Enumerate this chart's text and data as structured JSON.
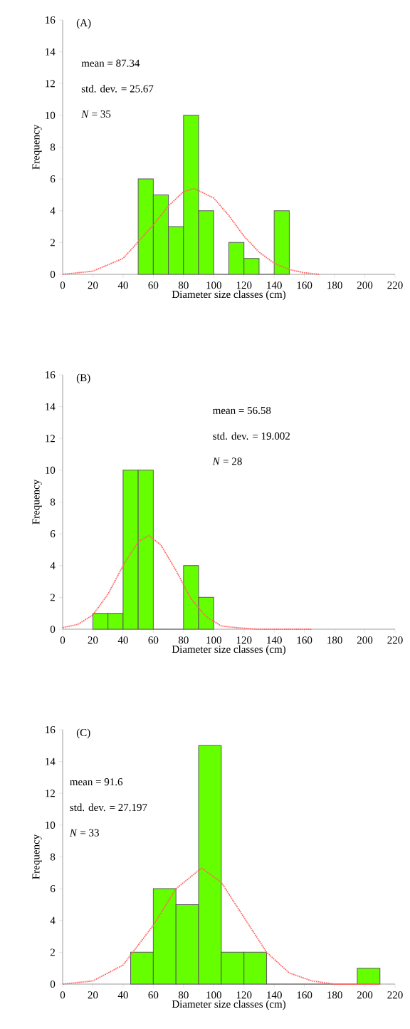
{
  "chart_data": [
    {
      "type": "histogram",
      "bins": [
        50,
        60,
        70,
        80,
        90,
        100,
        110,
        120,
        130,
        140,
        150
      ],
      "values": [
        6,
        5,
        3,
        10,
        4,
        0,
        2,
        1,
        0,
        4
      ],
      "color": "#66ff00",
      "series": [
        {
          "type": "line",
          "color": "#ff6666",
          "line_style": "dotted",
          "x": [
            0,
            20,
            40,
            60,
            70,
            80,
            87,
            100,
            110,
            120,
            130,
            140,
            150,
            160,
            170
          ],
          "values": [
            0,
            0.2,
            1,
            3.1,
            4.3,
            5.2,
            5.4,
            4.8,
            3.7,
            2.4,
            1.4,
            0.7,
            0.3,
            0.1,
            0
          ]
        }
      ],
      "xlabel": "Diameter size classes (cm)",
      "ylabel": "Frequency",
      "annotations": [
        "(A)",
        "mean = 87.34",
        "std. dev. = 25.67",
        "*N* = 35"
      ],
      "xlim": [
        0,
        220
      ],
      "ylim": [
        0,
        16
      ],
      "xticks": [
        0,
        20,
        40,
        60,
        80,
        100,
        120,
        140,
        160,
        180,
        200,
        220
      ],
      "yticks": [
        0,
        2,
        4,
        6,
        8,
        10,
        12,
        14,
        16
      ]
    },
    {
      "type": "histogram",
      "bins": [
        20,
        30,
        40,
        50,
        60,
        70,
        80,
        90,
        100
      ],
      "values": [
        1,
        1,
        10,
        10,
        0,
        0,
        4,
        2
      ],
      "color": "#66ff00",
      "series": [
        {
          "type": "line",
          "color": "#ff6666",
          "line_style": "dotted",
          "x": [
            0,
            10,
            20,
            30,
            40,
            50,
            57,
            65,
            75,
            85,
            95,
            105,
            115,
            130,
            165
          ],
          "values": [
            0.1,
            0.3,
            0.9,
            2.2,
            4,
            5.5,
            5.9,
            5.3,
            3.7,
            1.9,
            0.8,
            0.2,
            0.1,
            0,
            0
          ]
        }
      ],
      "xlabel": "Diameter size classes (cm)",
      "ylabel": "Frequency",
      "annotations": [
        "(B)",
        "mean = 56.58",
        "std. dev. = 19.002",
        "*N* = 28"
      ],
      "xlim": [
        0,
        220
      ],
      "ylim": [
        0,
        16
      ],
      "xticks": [
        0,
        20,
        40,
        60,
        80,
        100,
        120,
        140,
        160,
        180,
        200,
        220
      ],
      "yticks": [
        0,
        2,
        4,
        6,
        8,
        10,
        12,
        14,
        16
      ]
    },
    {
      "type": "histogram",
      "bins": [
        45,
        60,
        75,
        90,
        105,
        120,
        135,
        150,
        165,
        180,
        195,
        210
      ],
      "values": [
        2,
        6,
        5,
        15,
        2,
        2,
        0,
        0,
        0,
        0,
        1
      ],
      "color": "#66ff00",
      "series": [
        {
          "type": "line",
          "color": "#ff6666",
          "line_style": "dotted",
          "x": [
            0,
            20,
            40,
            60,
            75,
            92,
            105,
            120,
            135,
            150,
            165,
            180,
            200,
            210
          ],
          "values": [
            0,
            0.2,
            1.2,
            3.7,
            6,
            7.3,
            6.4,
            4.2,
            2,
            0.7,
            0.2,
            0,
            0,
            0
          ]
        }
      ],
      "xlabel": "Diameter size classes (cm)",
      "ylabel": "Frequency",
      "annotations": [
        "(C)",
        "mean = 91.6",
        "std. dev. = 27.197",
        "*N* = 33"
      ],
      "xlim": [
        0,
        220
      ],
      "ylim": [
        0,
        16
      ],
      "xticks": [
        0,
        20,
        40,
        60,
        80,
        100,
        120,
        140,
        160,
        180,
        200,
        220
      ],
      "yticks": [
        0,
        2,
        4,
        6,
        8,
        10,
        12,
        14,
        16
      ]
    }
  ]
}
